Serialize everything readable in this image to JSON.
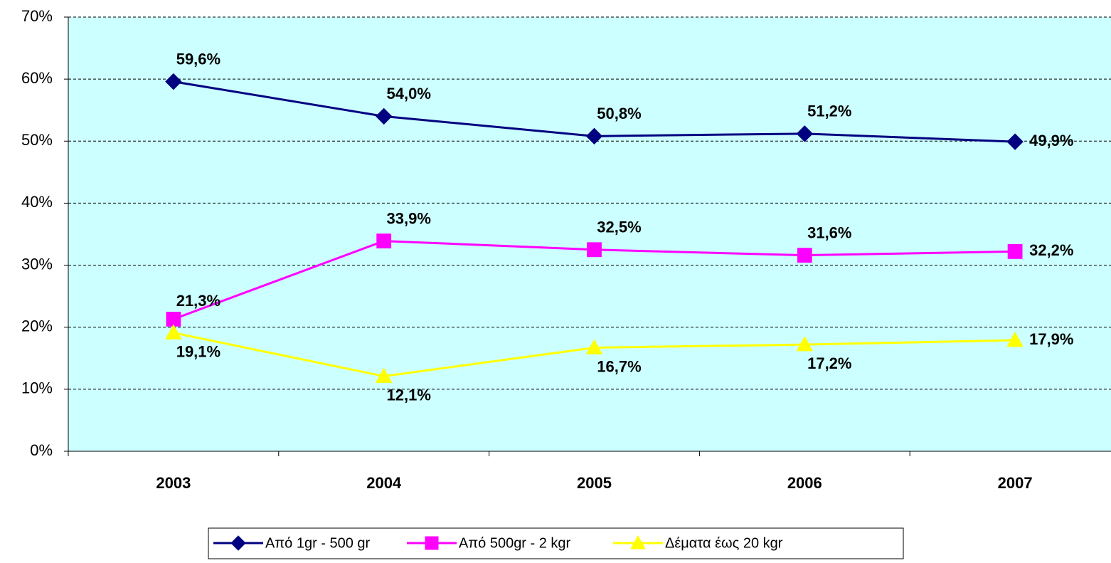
{
  "chart_data": {
    "type": "line",
    "categories": [
      "2003",
      "2004",
      "2005",
      "2006",
      "2007"
    ],
    "series": [
      {
        "name": "Από 1gr - 500 gr",
        "color": "#000080",
        "marker": "diamond",
        "values": [
          59.6,
          54.0,
          50.8,
          51.2,
          49.9
        ],
        "value_labels": [
          "59,6%",
          "54,0%",
          "50,8%",
          "51,2%",
          "49,9%"
        ]
      },
      {
        "name": "Από 500gr - 2 kgr",
        "color": "#ff00ff",
        "marker": "square",
        "values": [
          21.3,
          33.9,
          32.5,
          31.6,
          32.2
        ],
        "value_labels": [
          "21,3%",
          "33,9%",
          "32,5%",
          "31,6%",
          "32,2%"
        ]
      },
      {
        "name": "Δέματα έως 20 kgr",
        "color": "#ffff00",
        "marker": "triangle",
        "values": [
          19.1,
          12.1,
          16.7,
          17.2,
          17.9
        ],
        "value_labels": [
          "19,1%",
          "12,1%",
          "16,7%",
          "17,2%",
          "17,9%"
        ]
      }
    ],
    "ylim": [
      0,
      70
    ],
    "yticks": [
      {
        "value": 0,
        "label": "0%"
      },
      {
        "value": 10,
        "label": "10%"
      },
      {
        "value": 20,
        "label": "20%"
      },
      {
        "value": 30,
        "label": "30%"
      },
      {
        "value": 40,
        "label": "40%"
      },
      {
        "value": 50,
        "label": "50%"
      },
      {
        "value": 60,
        "label": "60%"
      },
      {
        "value": 70,
        "label": "70%"
      }
    ],
    "grid": true,
    "background": "#ccffff",
    "legend": "bottom"
  }
}
